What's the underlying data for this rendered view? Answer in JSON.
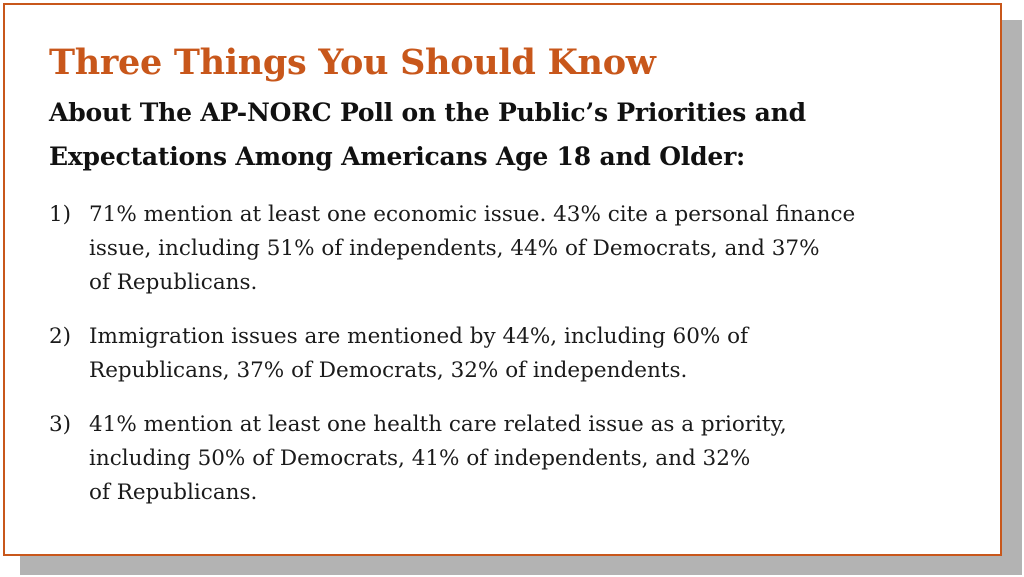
{
  "card": {
    "title": "Three Things You Should Know",
    "subtitle_lines": [
      "About The AP-NORC Poll on the Public’s Priorities and",
      "Expectations Among Americans Age 18 and Older:"
    ],
    "items": [
      {
        "number": "1)",
        "lines": [
          "71% mention at least one economic issue. 43% cite a personal finance",
          "issue, including 51% of independents, 44% of Democrats, and 37%",
          "of Republicans."
        ]
      },
      {
        "number": "2)",
        "lines": [
          "Immigration issues are mentioned by 44%, including 60% of",
          "Republicans, 37% of Democrats, 32% of independents."
        ]
      },
      {
        "number": "3)",
        "lines": [
          "41% mention at least one health care related issue as a priority,",
          "including 50% of Democrats, 41% of independents, and 32%",
          "of Republicans."
        ]
      }
    ]
  },
  "colors": {
    "accent": "#c8571b",
    "text": "#111111",
    "shadow": "#b3b3b3"
  }
}
